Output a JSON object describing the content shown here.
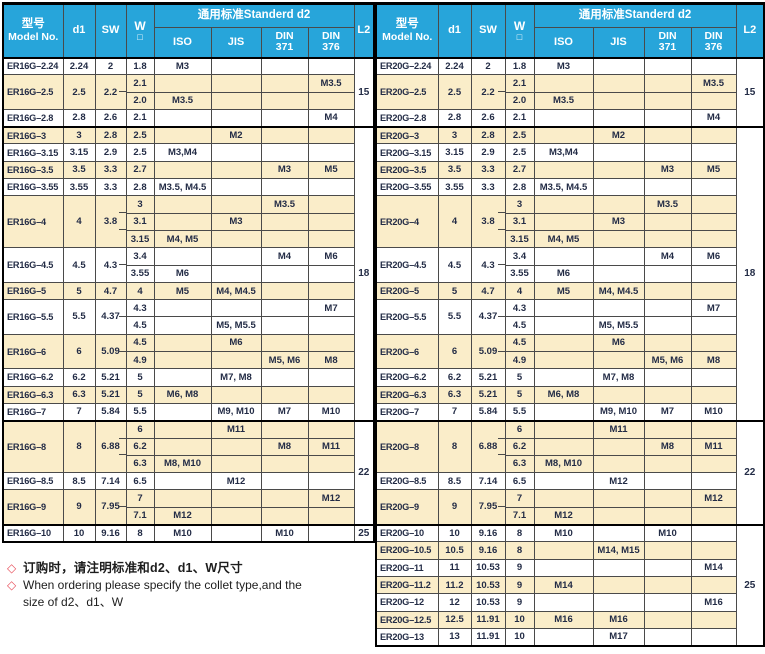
{
  "colors": {
    "header_bg": "#27a5da",
    "stripe_cream": "#faedc9",
    "text_navy": "#232c46",
    "bullet_red": "#e8515d",
    "border_thick": "#000000",
    "border_thin": "#4a4a4a"
  },
  "header": {
    "model_zh": "型号",
    "model_en": "Model No.",
    "d1": "d1",
    "sw": "SW",
    "w": "W",
    "w_symbol": "□",
    "standard": "通用标准Standerd d2",
    "iso": "ISO",
    "jis": "JIS",
    "din371": {
      "l1": "DIN",
      "l2": "371"
    },
    "din376": {
      "l1": "DIN",
      "l2": "376"
    },
    "l2": "L2"
  },
  "tables": [
    {
      "name": "ER16G collet specifications",
      "l2_groups": [
        {
          "label": "15",
          "rows": 4
        },
        {
          "label": "18",
          "rows": 17
        },
        {
          "label": "22",
          "rows": 6
        },
        {
          "label": "25",
          "rows": 1
        }
      ],
      "groups": [
        {
          "model": "ER16G–2.24",
          "d1": "2.24",
          "sw": "2",
          "rows": [
            {
              "w": "1.8",
              "iso": "M3"
            }
          ]
        },
        {
          "model": "ER16G–2.5",
          "d1": "2.5",
          "sw": "2.2",
          "rows": [
            {
              "w": "2.1",
              "din376": "M3.5"
            },
            {
              "w": "2.0",
              "iso": "M3.5"
            }
          ]
        },
        {
          "model": "ER16G–2.8",
          "d1": "2.8",
          "sw": "2.6",
          "rows": [
            {
              "w": "2.1",
              "din376": "M4"
            }
          ]
        },
        {
          "model": "ER16G–3",
          "d1": "3",
          "sw": "2.8",
          "rows": [
            {
              "w": "2.5",
              "jis": "M2"
            }
          ]
        },
        {
          "model": "ER16G–3.15",
          "d1": "3.15",
          "sw": "2.9",
          "rows": [
            {
              "w": "2.5",
              "iso": "M3,M4"
            }
          ]
        },
        {
          "model": "ER16G–3.5",
          "d1": "3.5",
          "sw": "3.3",
          "rows": [
            {
              "w": "2.7",
              "din371": "M3",
              "din376": "M5"
            }
          ]
        },
        {
          "model": "ER16G–3.55",
          "d1": "3.55",
          "sw": "3.3",
          "rows": [
            {
              "w": "2.8",
              "iso": "M3.5, M4.5"
            }
          ]
        },
        {
          "model": "ER16G–4",
          "d1": "4",
          "sw": "3.8",
          "rows": [
            {
              "w": "3",
              "din371": "M3.5"
            },
            {
              "w": "3.1",
              "jis": "M3"
            },
            {
              "w": "3.15",
              "iso": "M4, M5"
            }
          ]
        },
        {
          "model": "ER16G–4.5",
          "d1": "4.5",
          "sw": "4.3",
          "rows": [
            {
              "w": "3.4",
              "din371": "M4",
              "din376": "M6"
            },
            {
              "w": "3.55",
              "iso": "M6"
            }
          ]
        },
        {
          "model": "ER16G–5",
          "d1": "5",
          "sw": "4.7",
          "rows": [
            {
              "w": "4",
              "iso": "M5",
              "jis": "M4, M4.5"
            }
          ]
        },
        {
          "model": "ER16G–5.5",
          "d1": "5.5",
          "sw": "4.37",
          "rows": [
            {
              "w": "4.3",
              "din376": "M7"
            },
            {
              "w": "4.5",
              "jis": "M5, M5.5"
            }
          ]
        },
        {
          "model": "ER16G–6",
          "d1": "6",
          "sw": "5.09",
          "rows": [
            {
              "w": "4.5",
              "jis": "M6"
            },
            {
              "w": "4.9",
              "din371": "M5, M6",
              "din376": "M8"
            }
          ]
        },
        {
          "model": "ER16G–6.2",
          "d1": "6.2",
          "sw": "5.21",
          "rows": [
            {
              "w": "5",
              "jis": "M7, M8"
            }
          ]
        },
        {
          "model": "ER16G–6.3",
          "d1": "6.3",
          "sw": "5.21",
          "rows": [
            {
              "w": "5",
              "iso": "M6, M8"
            }
          ]
        },
        {
          "model": "ER16G–7",
          "d1": "7",
          "sw": "5.84",
          "rows": [
            {
              "w": "5.5",
              "jis": "M9, M10",
              "din371": "M7",
              "din376": "M10"
            }
          ]
        },
        {
          "model": "ER16G–8",
          "d1": "8",
          "sw": "6.88",
          "rows": [
            {
              "w": "6",
              "jis": "M11"
            },
            {
              "w": "6.2",
              "din371": "M8",
              "din376": "M11"
            },
            {
              "w": "6.3",
              "iso": "M8, M10"
            }
          ]
        },
        {
          "model": "ER16G–8.5",
          "d1": "8.5",
          "sw": "7.14",
          "rows": [
            {
              "w": "6.5",
              "jis": "M12"
            }
          ]
        },
        {
          "model": "ER16G–9",
          "d1": "9",
          "sw": "7.95",
          "rows": [
            {
              "w": "7",
              "din376": "M12"
            },
            {
              "w": "7.1",
              "iso": "M12"
            }
          ]
        },
        {
          "model": "ER16G–10",
          "d1": "10",
          "sw": "9.16",
          "rows": [
            {
              "w": "8",
              "iso": "M10",
              "din371": "M10"
            }
          ]
        }
      ]
    },
    {
      "name": "ER20G collet specifications",
      "l2_groups": [
        {
          "label": "15",
          "rows": 4
        },
        {
          "label": "18",
          "rows": 17
        },
        {
          "label": "22",
          "rows": 6
        },
        {
          "label": "25",
          "rows": 7
        }
      ],
      "groups": [
        {
          "model": "ER20G–2.24",
          "d1": "2.24",
          "sw": "2",
          "rows": [
            {
              "w": "1.8",
              "iso": "M3"
            }
          ]
        },
        {
          "model": "ER20G–2.5",
          "d1": "2.5",
          "sw": "2.2",
          "rows": [
            {
              "w": "2.1",
              "din376": "M3.5"
            },
            {
              "w": "2.0",
              "iso": "M3.5"
            }
          ]
        },
        {
          "model": "ER20G–2.8",
          "d1": "2.8",
          "sw": "2.6",
          "rows": [
            {
              "w": "2.1",
              "din376": "M4"
            }
          ]
        },
        {
          "model": "ER20G–3",
          "d1": "3",
          "sw": "2.8",
          "rows": [
            {
              "w": "2.5",
              "jis": "M2"
            }
          ]
        },
        {
          "model": "ER20G–3.15",
          "d1": "3.15",
          "sw": "2.9",
          "rows": [
            {
              "w": "2.5",
              "iso": "M3,M4"
            }
          ]
        },
        {
          "model": "ER20G–3.5",
          "d1": "3.5",
          "sw": "3.3",
          "rows": [
            {
              "w": "2.7",
              "din371": "M3",
              "din376": "M5"
            }
          ]
        },
        {
          "model": "ER20G–3.55",
          "d1": "3.55",
          "sw": "3.3",
          "rows": [
            {
              "w": "2.8",
              "iso": "M3.5, M4.5"
            }
          ]
        },
        {
          "model": "ER20G–4",
          "d1": "4",
          "sw": "3.8",
          "rows": [
            {
              "w": "3",
              "din371": "M3.5"
            },
            {
              "w": "3.1",
              "jis": "M3"
            },
            {
              "w": "3.15",
              "iso": "M4, M5"
            }
          ]
        },
        {
          "model": "ER20G–4.5",
          "d1": "4.5",
          "sw": "4.3",
          "rows": [
            {
              "w": "3.4",
              "din371": "M4",
              "din376": "M6"
            },
            {
              "w": "3.55",
              "iso": "M6"
            }
          ]
        },
        {
          "model": "ER20G–5",
          "d1": "5",
          "sw": "4.7",
          "rows": [
            {
              "w": "4",
              "iso": "M5",
              "jis": "M4, M4.5"
            }
          ]
        },
        {
          "model": "ER20G–5.5",
          "d1": "5.5",
          "sw": "4.37",
          "rows": [
            {
              "w": "4.3",
              "din376": "M7"
            },
            {
              "w": "4.5",
              "jis": "M5, M5.5"
            }
          ]
        },
        {
          "model": "ER20G–6",
          "d1": "6",
          "sw": "5.09",
          "rows": [
            {
              "w": "4.5",
              "jis": "M6"
            },
            {
              "w": "4.9",
              "din371": "M5, M6",
              "din376": "M8"
            }
          ]
        },
        {
          "model": "ER20G–6.2",
          "d1": "6.2",
          "sw": "5.21",
          "rows": [
            {
              "w": "5",
              "jis": "M7, M8"
            }
          ]
        },
        {
          "model": "ER20G–6.3",
          "d1": "6.3",
          "sw": "5.21",
          "rows": [
            {
              "w": "5",
              "iso": "M6, M8"
            }
          ]
        },
        {
          "model": "ER20G–7",
          "d1": "7",
          "sw": "5.84",
          "rows": [
            {
              "w": "5.5",
              "jis": "M9, M10",
              "din371": "M7",
              "din376": "M10"
            }
          ]
        },
        {
          "model": "ER20G–8",
          "d1": "8",
          "sw": "6.88",
          "rows": [
            {
              "w": "6",
              "jis": "M11"
            },
            {
              "w": "6.2",
              "din371": "M8",
              "din376": "M11"
            },
            {
              "w": "6.3",
              "iso": "M8, M10"
            }
          ]
        },
        {
          "model": "ER20G–8.5",
          "d1": "8.5",
          "sw": "7.14",
          "rows": [
            {
              "w": "6.5",
              "jis": "M12"
            }
          ]
        },
        {
          "model": "ER20G–9",
          "d1": "9",
          "sw": "7.95",
          "rows": [
            {
              "w": "7",
              "din376": "M12"
            },
            {
              "w": "7.1",
              "iso": "M12"
            }
          ]
        },
        {
          "model": "ER20G–10",
          "d1": "10",
          "sw": "9.16",
          "rows": [
            {
              "w": "8",
              "iso": "M10",
              "din371": "M10"
            }
          ]
        },
        {
          "model": "ER20G–10.5",
          "d1": "10.5",
          "sw": "9.16",
          "rows": [
            {
              "w": "8",
              "jis": "M14, M15"
            }
          ]
        },
        {
          "model": "ER20G–11",
          "d1": "11",
          "sw": "10.53",
          "rows": [
            {
              "w": "9",
              "din376": "M14"
            }
          ]
        },
        {
          "model": "ER20G–11.2",
          "d1": "11.2",
          "sw": "10.53",
          "rows": [
            {
              "w": "9",
              "iso": "M14"
            }
          ]
        },
        {
          "model": "ER20G–12",
          "d1": "12",
          "sw": "10.53",
          "rows": [
            {
              "w": "9",
              "din376": "M16"
            }
          ]
        },
        {
          "model": "ER20G–12.5",
          "d1": "12.5",
          "sw": "11.91",
          "rows": [
            {
              "w": "10",
              "iso": "M16",
              "jis": "M16"
            }
          ]
        },
        {
          "model": "ER20G–13",
          "d1": "13",
          "sw": "11.91",
          "rows": [
            {
              "w": "10",
              "jis": "M17"
            }
          ]
        }
      ]
    }
  ],
  "notes": {
    "bullet": "◇",
    "zh": "订购时，请注明标准和d2、d1、W尺寸",
    "en_line1": "When ordering please specify the collet type,and the",
    "en_line2": "size of d2、d1、W"
  }
}
